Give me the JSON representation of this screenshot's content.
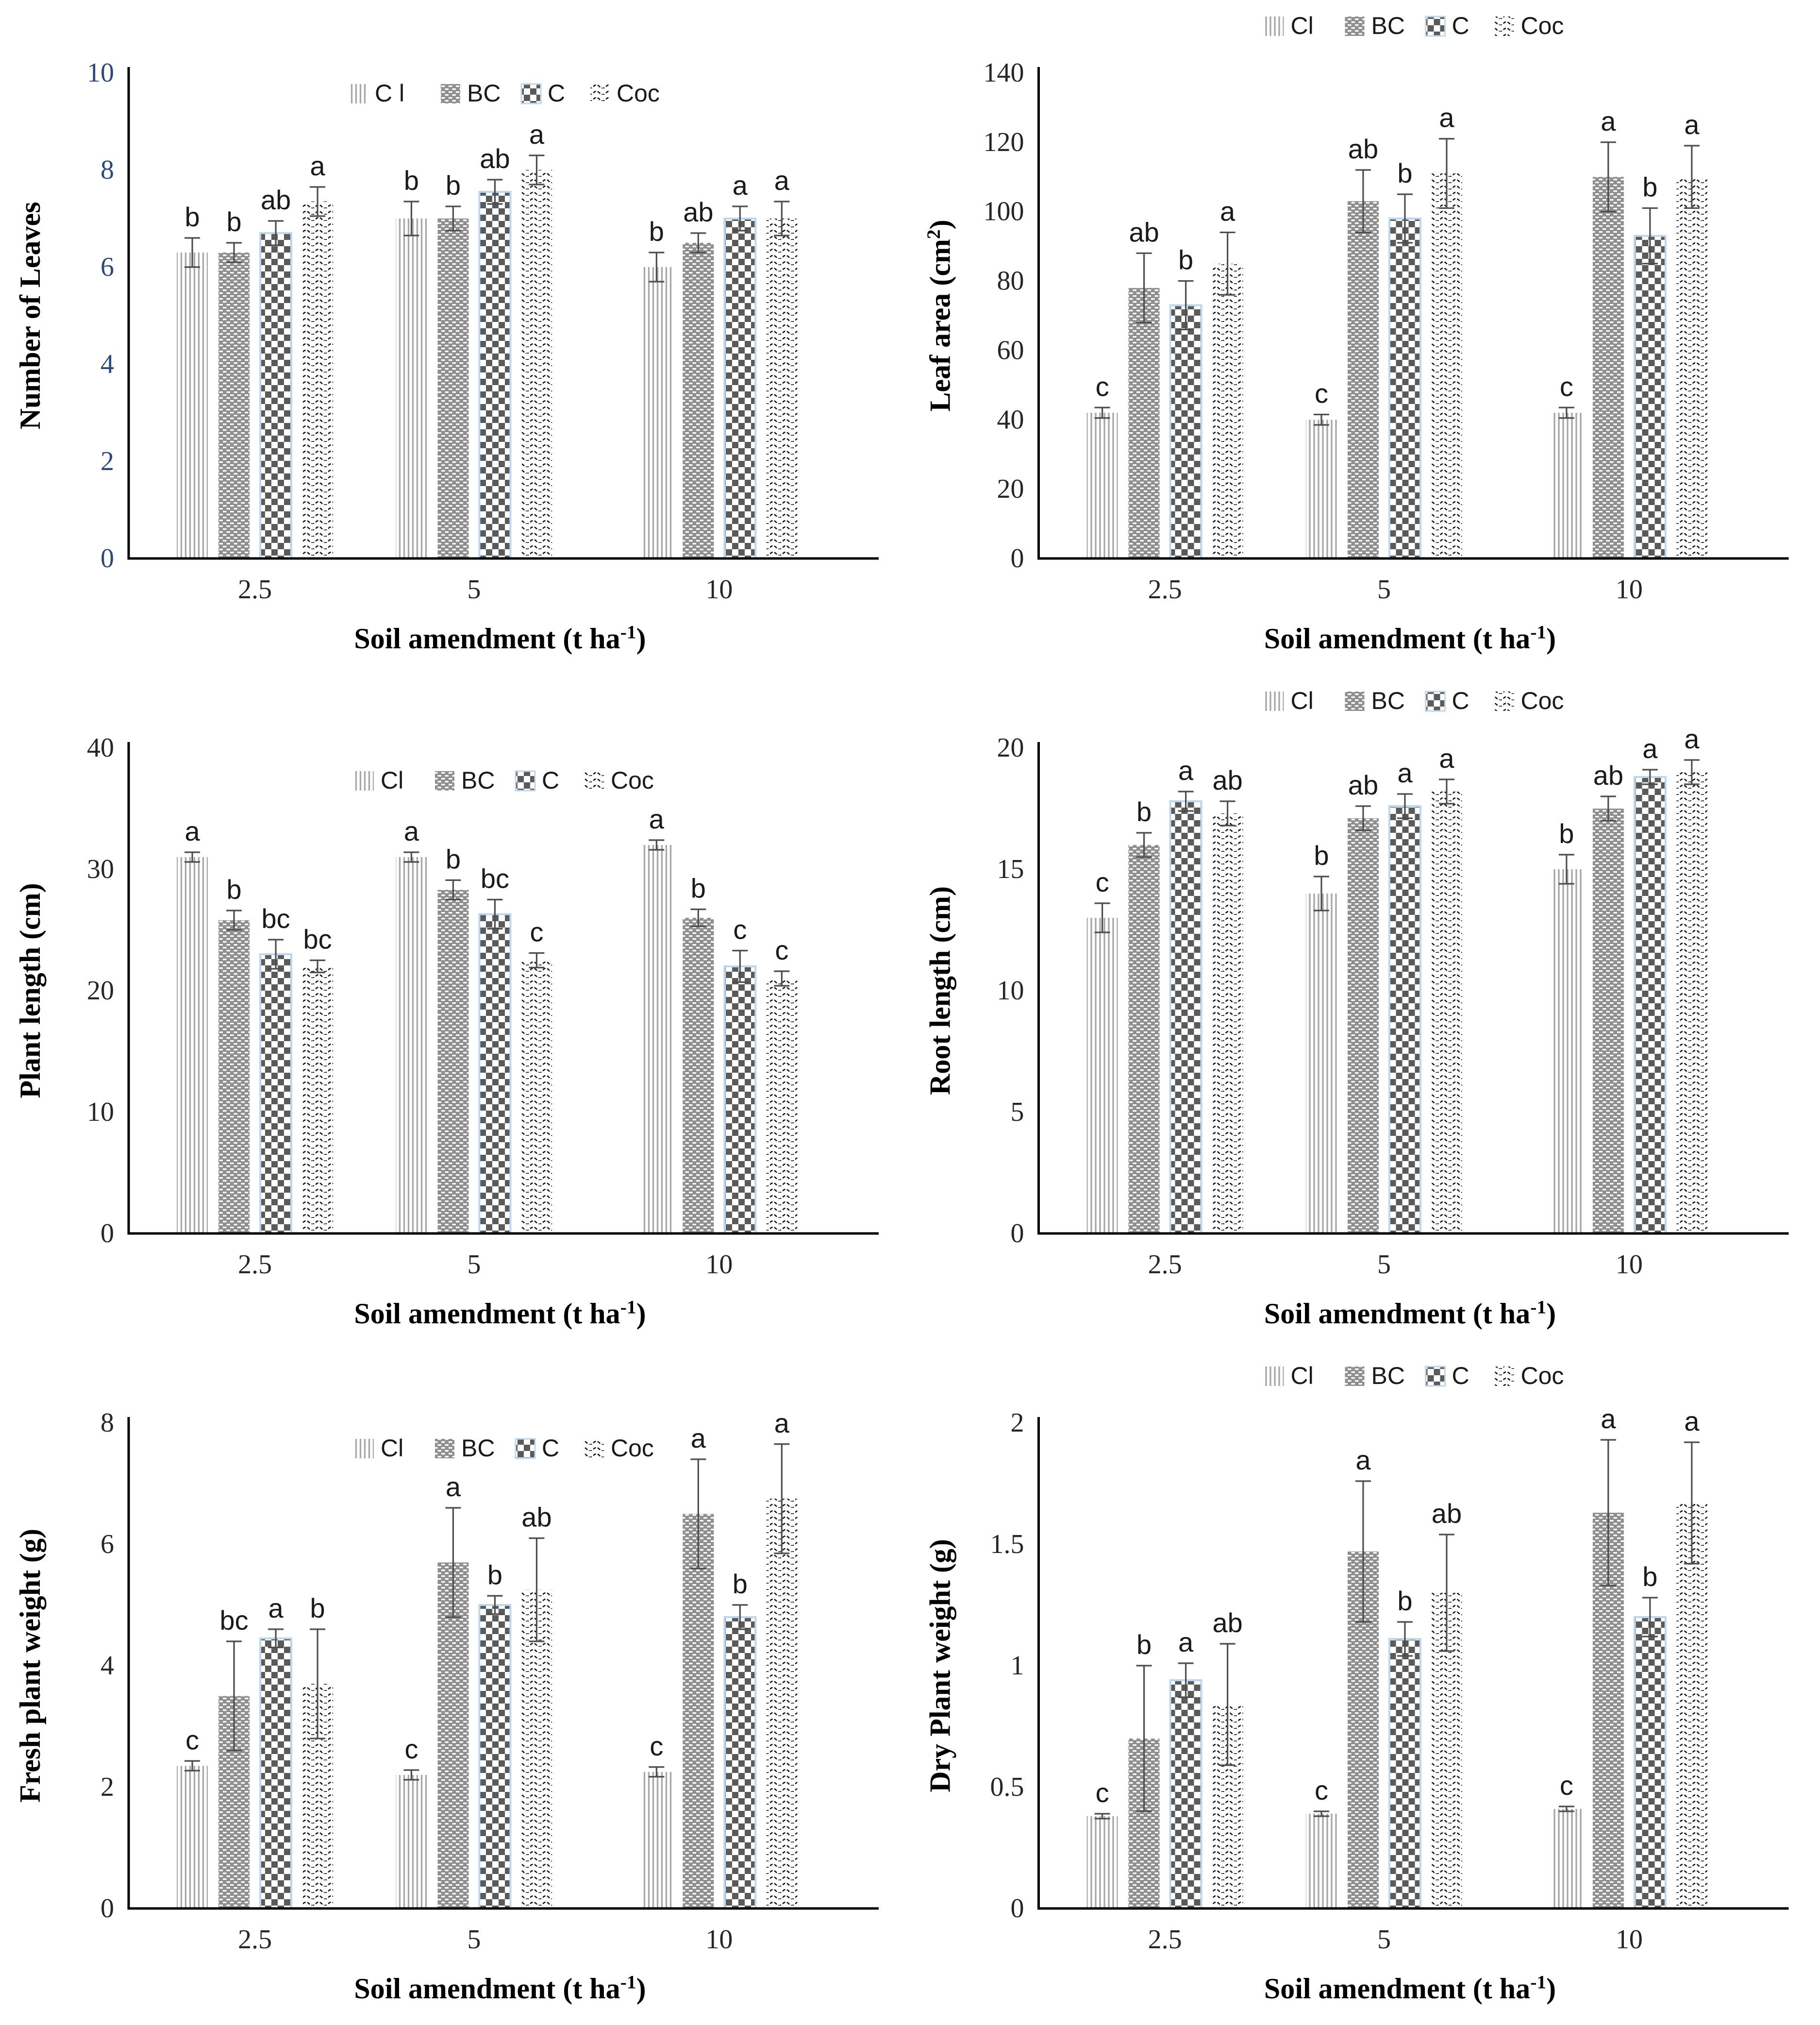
{
  "page": {
    "background": "#ffffff"
  },
  "colors": {
    "axis": "#000000",
    "tick_text": "#262626",
    "chart1_ytick_text": "#2c4a77",
    "label_text": "#000000",
    "letter_text": "#1a1a1a",
    "error_bar": "#4d4d4d",
    "cl_line": "#a8a8a8",
    "bc_bg": "#8f8f8f",
    "bc_dash": "#ffffff",
    "checker_dark": "#5a5a5a",
    "c_border": "#bdd7ee",
    "coc_line": "#141414"
  },
  "chart_data": [
    {
      "key": "number-of-leaves",
      "type": "bar",
      "title": "",
      "ylabel": {
        "pre": "Number of Leaves"
      },
      "xlabel": {
        "pre": "Soil amendment (t ha",
        "sup": "-1",
        "post": ")"
      },
      "ylim": [
        0,
        10
      ],
      "yticks": [
        "0",
        "2",
        "4",
        "6",
        "8",
        "10"
      ],
      "ytick_color": "#2c4a77",
      "categories": [
        "2.5",
        "5",
        "10"
      ],
      "legend_position": "inside-top",
      "legend_y": 205,
      "series": [
        {
          "name": "C l",
          "pattern": "vlines",
          "values": [
            6.3,
            7.0,
            6.0
          ],
          "errors": [
            0.3,
            0.35,
            0.3
          ],
          "letters": [
            "b",
            "b",
            "b"
          ]
        },
        {
          "name": "BC",
          "pattern": "dots",
          "values": [
            6.3,
            7.0,
            6.5
          ],
          "errors": [
            0.2,
            0.25,
            0.2
          ],
          "letters": [
            "b",
            "b",
            "ab"
          ]
        },
        {
          "name": "C",
          "pattern": "checker",
          "values": [
            6.7,
            7.55,
            7.0
          ],
          "errors": [
            0.25,
            0.25,
            0.25
          ],
          "letters": [
            "ab",
            "ab",
            "a"
          ]
        },
        {
          "name": "Coc",
          "pattern": "wave",
          "values": [
            7.35,
            8.0,
            7.0
          ],
          "errors": [
            0.3,
            0.3,
            0.35
          ],
          "letters": [
            "a",
            "a",
            "a"
          ]
        }
      ]
    },
    {
      "key": "leaf-area",
      "type": "bar",
      "title": "",
      "ylabel": {
        "pre": "Leaf area (cm",
        "sup": "2",
        "post": ")"
      },
      "xlabel": {
        "pre": "Soil amendment (t ha",
        "sup": "-1",
        "post": ")"
      },
      "ylim": [
        0,
        140
      ],
      "yticks": [
        "0",
        "20",
        "40",
        "60",
        "80",
        "100",
        "120",
        "140"
      ],
      "categories": [
        "2.5",
        "5",
        "10"
      ],
      "legend_position": "above",
      "legend_y": 66,
      "series": [
        {
          "name": "Cl",
          "pattern": "vlines",
          "values": [
            42,
            40,
            42
          ],
          "errors": [
            1.5,
            1.5,
            1.5
          ],
          "letters": [
            "c",
            "c",
            "c"
          ]
        },
        {
          "name": "BC",
          "pattern": "dots",
          "values": [
            78,
            103,
            110
          ],
          "errors": [
            10,
            9,
            10
          ],
          "letters": [
            "ab",
            "ab",
            "a"
          ]
        },
        {
          "name": "C",
          "pattern": "checker",
          "values": [
            73,
            98,
            93
          ],
          "errors": [
            7,
            7,
            8
          ],
          "letters": [
            "b",
            "b",
            "b"
          ]
        },
        {
          "name": "Coc",
          "pattern": "wave",
          "values": [
            85,
            111,
            110
          ],
          "errors": [
            9,
            10,
            9
          ],
          "letters": [
            "a",
            "a",
            "a"
          ]
        }
      ]
    },
    {
      "key": "plant-length",
      "type": "bar",
      "title": "",
      "ylabel": {
        "pre": "Plant length (cm)"
      },
      "xlabel": {
        "pre": "Soil amendment (t ha",
        "sup": "-1",
        "post": ")"
      },
      "ylim": [
        0,
        40
      ],
      "yticks": [
        "0",
        "10",
        "20",
        "30",
        "40"
      ],
      "categories": [
        "2.5",
        "5",
        "10"
      ],
      "legend_position": "inside-top",
      "legend_y": 230,
      "series": [
        {
          "name": "Cl",
          "pattern": "vlines",
          "values": [
            31,
            31,
            32
          ],
          "errors": [
            0.4,
            0.4,
            0.4
          ],
          "letters": [
            "a",
            "a",
            "a"
          ]
        },
        {
          "name": "BC",
          "pattern": "dots",
          "values": [
            25.8,
            28.3,
            26
          ],
          "errors": [
            0.8,
            0.8,
            0.7
          ],
          "letters": [
            "b",
            "b",
            "b"
          ]
        },
        {
          "name": "C",
          "pattern": "checker",
          "values": [
            23,
            26.3,
            22
          ],
          "errors": [
            1.2,
            1.2,
            1.3
          ],
          "letters": [
            "bc",
            "bc",
            "c"
          ]
        },
        {
          "name": "Coc",
          "pattern": "wave",
          "values": [
            22,
            22.5,
            21
          ],
          "errors": [
            0.5,
            0.6,
            0.6
          ],
          "letters": [
            "bc",
            "c",
            "c"
          ]
        }
      ]
    },
    {
      "key": "root-length",
      "type": "bar",
      "title": "",
      "ylabel": {
        "pre": "Root length (cm)"
      },
      "xlabel": {
        "pre": "Soil amendment (t ha",
        "sup": "-1",
        "post": ")"
      },
      "ylim": [
        0,
        20
      ],
      "yticks": [
        "0",
        "5",
        "10",
        "15",
        "20"
      ],
      "categories": [
        "2.5",
        "5",
        "10"
      ],
      "legend_position": "above",
      "legend_y": 66,
      "series": [
        {
          "name": "Cl",
          "pattern": "vlines",
          "values": [
            13,
            14,
            15
          ],
          "errors": [
            0.6,
            0.7,
            0.6
          ],
          "letters": [
            "c",
            "b",
            "b"
          ]
        },
        {
          "name": "BC",
          "pattern": "dots",
          "values": [
            16,
            17.1,
            17.5
          ],
          "errors": [
            0.5,
            0.5,
            0.5
          ],
          "letters": [
            "b",
            "ab",
            "ab"
          ]
        },
        {
          "name": "C",
          "pattern": "checker",
          "values": [
            17.8,
            17.6,
            18.8
          ],
          "errors": [
            0.4,
            0.5,
            0.3
          ],
          "letters": [
            "a",
            "a",
            "a"
          ]
        },
        {
          "name": "Coc",
          "pattern": "wave",
          "values": [
            17.3,
            18.2,
            19.0
          ],
          "errors": [
            0.5,
            0.5,
            0.5
          ],
          "letters": [
            "ab",
            "a",
            "a"
          ]
        }
      ]
    },
    {
      "key": "fresh-plant-weight",
      "type": "bar",
      "title": "",
      "ylabel": {
        "pre": "Fresh plant weight (g)"
      },
      "xlabel": {
        "pre": "Soil amendment (t ha",
        "sup": "-1",
        "post": ")"
      },
      "ylim": [
        0,
        8
      ],
      "yticks": [
        "0",
        "2",
        "4",
        "6",
        "8"
      ],
      "categories": [
        "2.5",
        "5",
        "10"
      ],
      "legend_position": "inside-top",
      "legend_y": 215,
      "series": [
        {
          "name": "Cl",
          "pattern": "vlines",
          "values": [
            2.35,
            2.2,
            2.25
          ],
          "errors": [
            0.08,
            0.08,
            0.08
          ],
          "letters": [
            "c",
            "c",
            "c"
          ]
        },
        {
          "name": "BC",
          "pattern": "dots",
          "values": [
            3.5,
            5.7,
            6.5
          ],
          "errors": [
            0.9,
            0.9,
            0.9
          ],
          "letters": [
            "bc",
            "a",
            "a"
          ]
        },
        {
          "name": "C",
          "pattern": "checker",
          "values": [
            4.45,
            5.0,
            4.8
          ],
          "errors": [
            0.15,
            0.15,
            0.2
          ],
          "letters": [
            "a",
            "b",
            "b"
          ]
        },
        {
          "name": "Coc",
          "pattern": "wave",
          "values": [
            3.7,
            5.25,
            6.75
          ],
          "errors": [
            0.9,
            0.85,
            0.9
          ],
          "letters": [
            "b",
            "ab",
            "a"
          ]
        }
      ]
    },
    {
      "key": "dry-plant-weight",
      "type": "bar",
      "title": "",
      "ylabel": {
        "pre": "Dry Plant weight (g)"
      },
      "xlabel": {
        "pre": "Soil amendment (t ha",
        "sup": "-1",
        "post": ")"
      },
      "ylim": [
        0,
        2
      ],
      "yticks": [
        "0",
        "0.5",
        "1",
        "1.5",
        "2"
      ],
      "categories": [
        "2.5",
        "5",
        "10"
      ],
      "legend_position": "above",
      "legend_y": 66,
      "series": [
        {
          "name": "Cl",
          "pattern": "vlines",
          "values": [
            0.38,
            0.39,
            0.41
          ],
          "errors": [
            0.01,
            0.01,
            0.01
          ],
          "letters": [
            "c",
            "c",
            "c"
          ]
        },
        {
          "name": "BC",
          "pattern": "dots",
          "values": [
            0.7,
            1.47,
            1.63
          ],
          "errors": [
            0.3,
            0.29,
            0.3
          ],
          "letters": [
            "b",
            "a",
            "a"
          ]
        },
        {
          "name": "C",
          "pattern": "checker",
          "values": [
            0.94,
            1.11,
            1.2
          ],
          "errors": [
            0.07,
            0.07,
            0.08
          ],
          "letters": [
            "a",
            "b",
            "b"
          ]
        },
        {
          "name": "Coc",
          "pattern": "wave",
          "values": [
            0.84,
            1.3,
            1.67
          ],
          "errors": [
            0.25,
            0.24,
            0.25
          ],
          "letters": [
            "ab",
            "ab",
            "a"
          ]
        }
      ]
    }
  ]
}
